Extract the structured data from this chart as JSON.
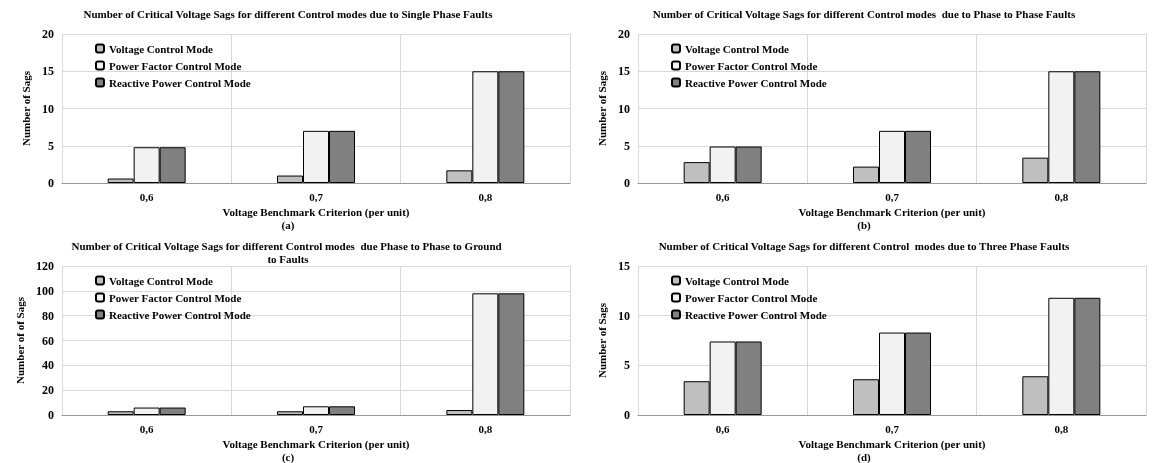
{
  "chart_data": [
    {
      "type": "bar",
      "title": "Number of Critical Voltage Sags for different Control modes due to Single Phase Faults",
      "xlabel": "Voltage Benchmark Criterion (per unit)",
      "ylabel": "Number of Sags",
      "annotations": [
        "(a)"
      ],
      "categories": [
        "0,6",
        "0,7",
        "0,8"
      ],
      "series": [
        {
          "name": "Voltage Control Mode",
          "color": "#bfbfbf",
          "values": [
            0.6,
            1.0,
            1.7
          ]
        },
        {
          "name": "Power Factor Control Mode",
          "color": "#f2f2f2",
          "values": [
            4.8,
            7,
            15
          ]
        },
        {
          "name": "Reactive Power Control Mode",
          "color": "#808080",
          "values": [
            4.8,
            7,
            15
          ]
        }
      ],
      "ylim": [
        0,
        20
      ],
      "yticks": [
        0,
        5,
        10,
        15,
        20
      ],
      "grid": true,
      "legend": "top left"
    },
    {
      "type": "bar",
      "title": "Number of Critical Voltage Sags for different Control modes  due to Phase to Phase Faults",
      "xlabel": "Voltage Benchmark Criterion (per unit)",
      "ylabel": "Number of Sags",
      "annotations": [
        "(b)"
      ],
      "categories": [
        "0,6",
        "0,7",
        "0,8"
      ],
      "series": [
        {
          "name": "Voltage Control Mode",
          "color": "#bfbfbf",
          "values": [
            2.8,
            2.2,
            3.4
          ]
        },
        {
          "name": "Power Factor Control Mode",
          "color": "#f2f2f2",
          "values": [
            4.9,
            7,
            15
          ]
        },
        {
          "name": "Reactive Power Control Mode",
          "color": "#808080",
          "values": [
            4.9,
            7,
            15
          ]
        }
      ],
      "ylim": [
        0,
        20
      ],
      "yticks": [
        0,
        5,
        10,
        15,
        20
      ],
      "grid": true,
      "legend": "top left"
    },
    {
      "type": "bar",
      "title": "Number of Critical Voltage Sags for different Control modes  due Phase to Phase to Ground to Faults",
      "xlabel": "Voltage Benchmark Criterion (per unit)",
      "ylabel": "Number of of Sags",
      "annotations": [
        "(c)"
      ],
      "categories": [
        "0,6",
        "0,7",
        "0,8"
      ],
      "series": [
        {
          "name": "Voltage Control Mode",
          "color": "#bfbfbf",
          "values": [
            3,
            3,
            4
          ]
        },
        {
          "name": "Power Factor Control Mode",
          "color": "#f2f2f2",
          "values": [
            6,
            7,
            98
          ]
        },
        {
          "name": "Reactive Power Control Mode",
          "color": "#808080",
          "values": [
            6,
            7,
            98
          ]
        }
      ],
      "ylim": [
        0,
        120
      ],
      "yticks": [
        0,
        20,
        40,
        60,
        80,
        100,
        120
      ],
      "grid": true,
      "legend": "top left"
    },
    {
      "type": "bar",
      "title": "Number of Critical Voltage Sags for different Control  modes due to Three Phase Faults",
      "xlabel": "Voltage Benchmark Criterion (per unit)",
      "ylabel": "Number of Sags",
      "annotations": [
        "(d)"
      ],
      "categories": [
        "0,6",
        "0,7",
        "0,8"
      ],
      "series": [
        {
          "name": "Voltage Control Mode",
          "color": "#bfbfbf",
          "values": [
            3.4,
            3.6,
            3.9
          ]
        },
        {
          "name": "Power Factor Control Mode",
          "color": "#f2f2f2",
          "values": [
            7.4,
            8.3,
            11.8
          ]
        },
        {
          "name": "Reactive Power Control Mode",
          "color": "#808080",
          "values": [
            7.4,
            8.3,
            11.8
          ]
        }
      ],
      "ylim": [
        0,
        15
      ],
      "yticks": [
        0,
        5,
        10,
        15
      ],
      "grid": true,
      "legend": "top left"
    }
  ]
}
